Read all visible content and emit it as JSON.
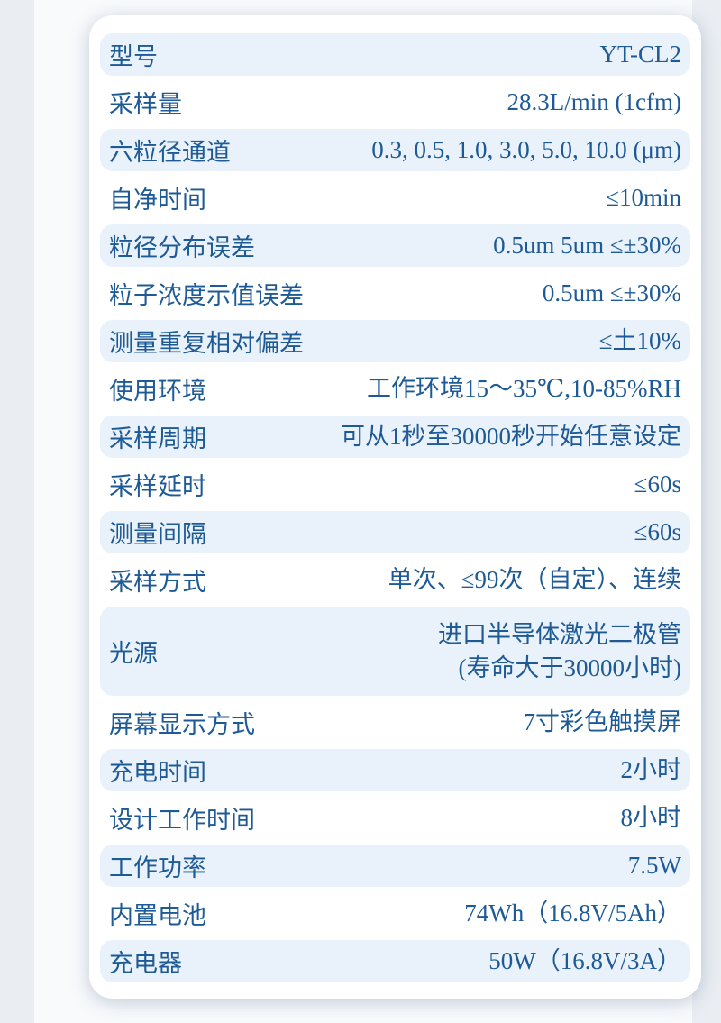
{
  "page": {
    "background_color": "#eaeef3",
    "panel_color": "#f8fafc",
    "card_color": "#ffffff",
    "row_highlight_color": "#e9f1fa",
    "text_color": "#1d5a96"
  },
  "spec_table": {
    "rows": [
      {
        "label": "型号",
        "value_lines": [
          "YT-CL2"
        ],
        "highlight": true
      },
      {
        "label": "采样量",
        "value_lines": [
          "28.3L/min (1cfm)"
        ],
        "highlight": false
      },
      {
        "label": "六粒径通道",
        "value_lines": [
          "0.3, 0.5, 1.0, 3.0, 5.0, 10.0 (μm)"
        ],
        "highlight": true
      },
      {
        "label": "自净时间",
        "value_lines": [
          "≤10min"
        ],
        "highlight": false
      },
      {
        "label": "粒径分布误差",
        "value_lines": [
          "0.5um 5um ≤±30%"
        ],
        "highlight": true
      },
      {
        "label": "粒子浓度示值误差",
        "value_lines": [
          "0.5um ≤±30%"
        ],
        "highlight": false
      },
      {
        "label": "测量重复相对偏差",
        "value_lines": [
          "≤土10%"
        ],
        "highlight": true
      },
      {
        "label": "使用环境",
        "value_lines": [
          "工作环境15～35℃,10-85%RH"
        ],
        "highlight": false
      },
      {
        "label": "采样周期",
        "value_lines": [
          "可从1秒至30000秒开始任意设定"
        ],
        "highlight": true
      },
      {
        "label": "采样延时",
        "value_lines": [
          "≤60s"
        ],
        "highlight": false
      },
      {
        "label": "测量间隔",
        "value_lines": [
          "≤60s"
        ],
        "highlight": true
      },
      {
        "label": "采样方式",
        "value_lines": [
          "单次、≤99次（自定）、连续"
        ],
        "highlight": false
      },
      {
        "label": "光源",
        "value_lines": [
          "进口半导体激光二极管",
          "(寿命大于30000小时)"
        ],
        "highlight": true,
        "tall": true
      },
      {
        "label": "屏幕显示方式",
        "value_lines": [
          "7寸彩色触摸屏"
        ],
        "highlight": false
      },
      {
        "label": "充电时间",
        "value_lines": [
          "2小时"
        ],
        "highlight": true
      },
      {
        "label": "设计工作时间",
        "value_lines": [
          "8小时"
        ],
        "highlight": false
      },
      {
        "label": "工作功率",
        "value_lines": [
          "7.5W"
        ],
        "highlight": true
      },
      {
        "label": "内置电池",
        "value_lines": [
          "74Wh（16.8V/5Ah）"
        ],
        "highlight": false
      },
      {
        "label": "充电器",
        "value_lines": [
          "50W（16.8V/3A）"
        ],
        "highlight": true
      }
    ]
  }
}
